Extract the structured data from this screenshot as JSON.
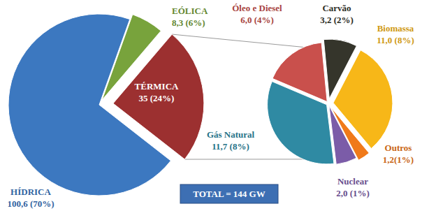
{
  "chart_data": [
    {
      "type": "pie",
      "categories": [
        "HÍDRICA",
        "EÓLICA",
        "TÉRMICA"
      ],
      "values": [
        100.6,
        8.3,
        35
      ],
      "value_labels": [
        "100,6 (70%)",
        "8,3 (6%)",
        "35 (24%)"
      ],
      "colors": [
        "#3c78c0",
        "#78a33c",
        "#9c3030"
      ],
      "data_labels": true,
      "annotations": [
        "TOTAL = 144 GW"
      ]
    },
    {
      "type": "pie",
      "categories": [
        "Óleo e Diesel",
        "Carvão",
        "Biomassa",
        "Outros",
        "Nuclear",
        "Gás Natural"
      ],
      "values": [
        6.0,
        3.2,
        11.0,
        1.2,
        2.0,
        11.7
      ],
      "value_labels": [
        "6,0 (4%)",
        "3,2 (2%)",
        "11,0 (8%)",
        "1,2(1%)",
        "2,0 (1%)",
        "11,7 (8%)"
      ],
      "colors": [
        "#c9504c",
        "#35352b",
        "#f7b718",
        "#f07a1a",
        "#7b5ca8",
        "#2f8aa3"
      ],
      "data_labels": true
    }
  ]
}
